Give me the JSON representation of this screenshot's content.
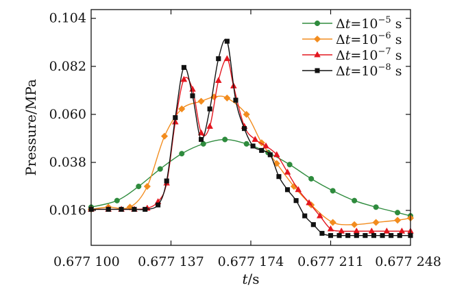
{
  "chart_data": {
    "type": "line",
    "xlabel": "t/s",
    "ylabel": "Pressure/MPa",
    "xlim": [
      0.6771,
      0.677248
    ],
    "ylim": [
      0.0,
      0.108
    ],
    "xticks": [
      0.6771,
      0.677137,
      0.677174,
      0.677211,
      0.677248
    ],
    "xtick_labels": [
      "0.677 100",
      "0.677 137",
      "0.677 174",
      "0.677 211",
      "0.677 248"
    ],
    "yticks": [
      0.016,
      0.038,
      0.06,
      0.082,
      0.104
    ],
    "ytick_labels": [
      "0.016",
      "0.038",
      "0.060",
      "0.082",
      "0.104"
    ],
    "legend_position": "top-right",
    "series": [
      {
        "name": "Δt=10⁻⁵ s",
        "name_base": "Δt=10",
        "name_exp": "−5",
        "name_unit": " s",
        "color": "#2e8b3d",
        "marker": "circle",
        "x": [
          0.6771,
          0.677112,
          0.677122,
          0.677132,
          0.677142,
          0.677152,
          0.677162,
          0.677172,
          0.677182,
          0.677192,
          0.677202,
          0.677212,
          0.677222,
          0.677232,
          0.677242,
          0.677248
        ],
        "y": [
          0.0175,
          0.0205,
          0.027,
          0.035,
          0.042,
          0.0465,
          0.0485,
          0.0465,
          0.0425,
          0.037,
          0.0305,
          0.025,
          0.0205,
          0.0175,
          0.015,
          0.0135
        ]
      },
      {
        "name": "Δt=10⁻⁶ s",
        "name_base": "Δt=10",
        "name_exp": "−6",
        "name_unit": " s",
        "color": "#f28c1e",
        "marker": "diamond",
        "x": [
          0.6771,
          0.677108,
          0.677118,
          0.677126,
          0.677134,
          0.677142,
          0.677151,
          0.677157,
          0.677163,
          0.677172,
          0.677179,
          0.677186,
          0.677194,
          0.677202,
          0.677212,
          0.677222,
          0.677232,
          0.677242,
          0.677248
        ],
        "y": [
          0.0165,
          0.0175,
          0.0175,
          0.027,
          0.05,
          0.0625,
          0.066,
          0.068,
          0.0675,
          0.06,
          0.047,
          0.0375,
          0.027,
          0.0185,
          0.0105,
          0.0095,
          0.0105,
          0.0115,
          0.0125
        ]
      },
      {
        "name": "Δt=10⁻⁷ s",
        "name_base": "Δt=10",
        "name_exp": "−7",
        "name_unit": " s",
        "color": "#e3161f",
        "marker": "triangle",
        "x": [
          0.6771,
          0.677108,
          0.677114,
          0.67712,
          0.677126,
          0.677131,
          0.677135,
          0.677139,
          0.677143,
          0.677147,
          0.677151,
          0.677155,
          0.677159,
          0.677163,
          0.677166,
          0.677171,
          0.677176,
          0.677181,
          0.677186,
          0.677191,
          0.677196,
          0.677201,
          0.677206,
          0.677211,
          0.677216,
          0.677223,
          0.67723,
          0.677237,
          0.677244,
          0.677248
        ],
        "y": [
          0.0165,
          0.0165,
          0.0165,
          0.0165,
          0.017,
          0.02,
          0.0285,
          0.0565,
          0.076,
          0.0715,
          0.0515,
          0.0545,
          0.0755,
          0.0855,
          0.073,
          0.0545,
          0.0485,
          0.0455,
          0.0415,
          0.0335,
          0.0255,
          0.0195,
          0.0135,
          0.0075,
          0.0065,
          0.0065,
          0.0065,
          0.0065,
          0.0065,
          0.0065
        ]
      },
      {
        "name": "Δt=10⁻⁸ s",
        "name_base": "Δt=10",
        "name_exp": "−8",
        "name_unit": " s",
        "color": "#111111",
        "marker": "square",
        "x": [
          0.6771,
          0.677108,
          0.677114,
          0.67712,
          0.677125,
          0.677131,
          0.677135,
          0.677139,
          0.677143,
          0.677147,
          0.677151,
          0.677155,
          0.677159,
          0.677163,
          0.677167,
          0.677171,
          0.677175,
          0.677179,
          0.677183,
          0.677187,
          0.677191,
          0.677195,
          0.677199,
          0.677203,
          0.677207,
          0.677211,
          0.677215,
          0.677219,
          0.677223,
          0.677227,
          0.677231,
          0.677235,
          0.677239,
          0.677243,
          0.677248
        ],
        "y": [
          0.0165,
          0.0165,
          0.0165,
          0.0165,
          0.0165,
          0.0185,
          0.0295,
          0.0585,
          0.0815,
          0.0685,
          0.0485,
          0.0625,
          0.0855,
          0.0935,
          0.0665,
          0.0535,
          0.0455,
          0.0435,
          0.0415,
          0.0315,
          0.0255,
          0.0205,
          0.0135,
          0.0095,
          0.0055,
          0.0045,
          0.0045,
          0.0045,
          0.0045,
          0.0045,
          0.0045,
          0.0045,
          0.0045,
          0.0045,
          0.0045
        ]
      }
    ]
  }
}
